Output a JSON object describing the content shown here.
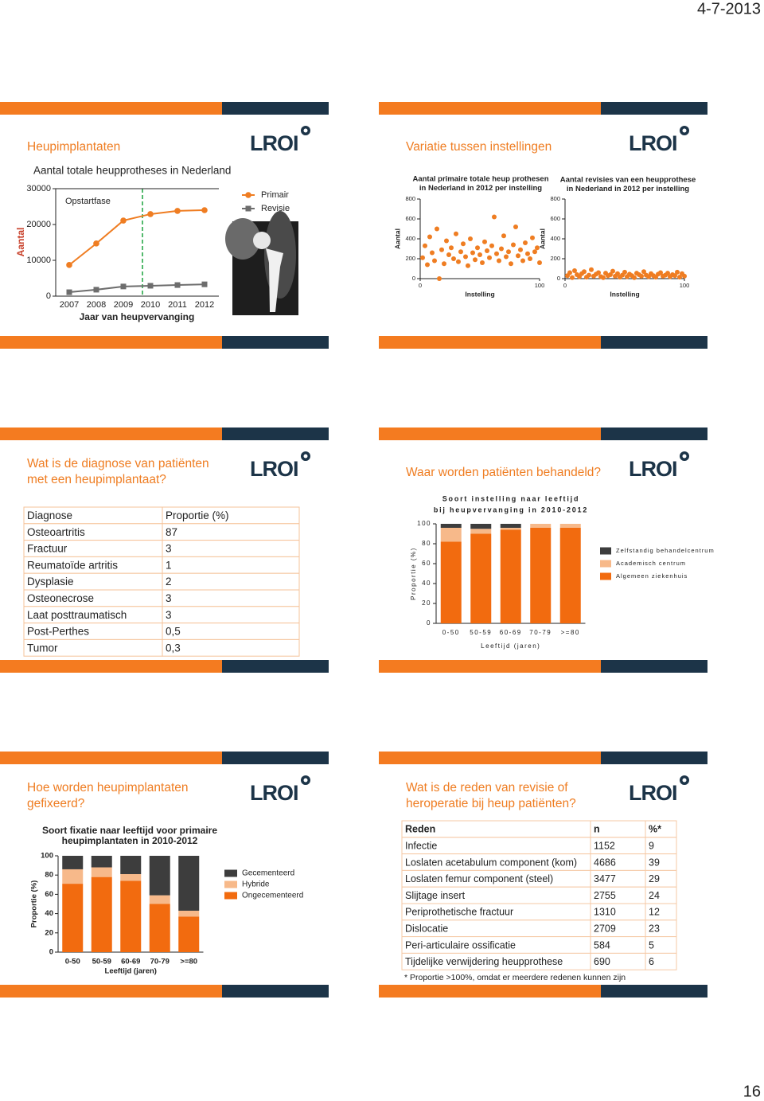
{
  "header": {
    "date": "4-7-2013"
  },
  "logo": "LROI",
  "slides": [
    {
      "title": "Heupimplantaten",
      "chart": {
        "type": "line",
        "title": "Aantal totale heupprotheses in Nederland",
        "annotation": "Opstartfase",
        "x_label": "Jaar van heupvervanging",
        "y_label": "Aantal",
        "categories": [
          "2007",
          "2008",
          "2009",
          "2010",
          "2011",
          "2012"
        ],
        "series": [
          {
            "name": "Primair",
            "color": "#ef7d22",
            "marker": "circle",
            "values": [
              8700,
              14700,
              21100,
              22900,
              23800,
              24000
            ]
          },
          {
            "name": "Revisie",
            "color": "#6d6d6d",
            "marker": "square",
            "values": [
              1100,
              1800,
              2700,
              2900,
              3100,
              3300
            ]
          }
        ],
        "ylim": [
          0,
          30000
        ],
        "yticks": [
          0,
          10000,
          20000,
          30000
        ]
      }
    },
    {
      "title": "Variatie tussen instellingen",
      "charts": [
        {
          "type": "scatter",
          "title_lines": [
            "Aantal primaire totale heup prothesen",
            "in Nederland in 2012 per instelling"
          ],
          "x_label": "Instelling",
          "y_label": "Aantal",
          "color": "#ef7d22",
          "x": [
            2,
            4,
            6,
            8,
            10,
            12,
            14,
            16,
            18,
            20,
            22,
            24,
            26,
            28,
            30,
            32,
            34,
            36,
            38,
            40,
            42,
            44,
            46,
            48,
            50,
            52,
            54,
            56,
            58,
            60,
            62,
            64,
            66,
            68,
            70,
            72,
            74,
            76,
            78,
            80,
            82,
            84,
            86,
            88,
            90,
            92,
            94,
            96,
            98,
            100
          ],
          "y": [
            210,
            330,
            140,
            420,
            260,
            180,
            500,
            0,
            290,
            150,
            380,
            240,
            310,
            200,
            450,
            170,
            270,
            350,
            220,
            130,
            400,
            260,
            190,
            310,
            240,
            160,
            370,
            280,
            210,
            330,
            620,
            250,
            180,
            300,
            430,
            220,
            270,
            150,
            340,
            520,
            230,
            290,
            180,
            360,
            250,
            200,
            410,
            270,
            310,
            160
          ],
          "xlim": [
            0,
            100
          ],
          "xticks": [
            0,
            100
          ],
          "ylim": [
            0,
            800
          ],
          "yticks": [
            0,
            200,
            400,
            600,
            800
          ]
        },
        {
          "type": "scatter",
          "title_lines": [
            "Aantal revisies van een heupprothese",
            "in Nederland in 2012 per instelling"
          ],
          "x_label": "Instelling",
          "y_label": "Aantal",
          "color": "#ef7d22",
          "x": [
            2,
            4,
            6,
            8,
            10,
            12,
            14,
            16,
            18,
            20,
            22,
            24,
            26,
            28,
            30,
            32,
            34,
            36,
            38,
            40,
            42,
            44,
            46,
            48,
            50,
            52,
            54,
            56,
            58,
            60,
            62,
            64,
            66,
            68,
            70,
            72,
            74,
            76,
            78,
            80,
            82,
            84,
            86,
            88,
            90,
            92,
            94,
            96,
            98,
            100
          ],
          "y": [
            30,
            60,
            10,
            80,
            40,
            20,
            50,
            70,
            15,
            35,
            90,
            25,
            45,
            60,
            20,
            10,
            55,
            30,
            40,
            75,
            25,
            50,
            15,
            35,
            65,
            20,
            45,
            30,
            10,
            55,
            40,
            25,
            70,
            35,
            20,
            50,
            30,
            15,
            45,
            60,
            25,
            35,
            55,
            20,
            40,
            30,
            65,
            15,
            50,
            25
          ],
          "xlim": [
            0,
            100
          ],
          "xticks": [
            0,
            100
          ],
          "ylim": [
            0,
            800
          ],
          "yticks": [
            0,
            200,
            400,
            600,
            800
          ]
        }
      ]
    },
    {
      "title_lines": [
        "Wat is de diagnose van patiënten",
        "met een heupimplantaat?"
      ],
      "table": {
        "columns": [
          "Diagnose",
          "Proportie (%)"
        ],
        "rows": [
          [
            "Osteoartritis",
            "87"
          ],
          [
            "Fractuur",
            "3"
          ],
          [
            "Reumatoïde artritis",
            "1"
          ],
          [
            "Dysplasie",
            "2"
          ],
          [
            "Osteonecrose",
            "3"
          ],
          [
            "Laat posttraumatisch",
            "3"
          ],
          [
            "Post-Perthes",
            "0,5"
          ],
          [
            "Tumor",
            "0,3"
          ]
        ]
      }
    },
    {
      "title": "Waar worden patiënten behandeld?",
      "chart": {
        "type": "bar",
        "stacked": true,
        "title_lines": [
          "Soort instelling naar leeftijd",
          "bij heupvervanging in 2010-2012"
        ],
        "x_label": "Leeftijd (jaren)",
        "y_label": "Proportie (%)",
        "categories": [
          "0-50",
          "50-59",
          "60-69",
          "70-79",
          ">=80"
        ],
        "series": [
          {
            "name": "Algemeen ziekenhuis",
            "color": "#f26b0f",
            "values": [
              82,
              90,
              94,
              96,
              96
            ]
          },
          {
            "name": "Academisch centrum",
            "color": "#f7b98a",
            "values": [
              14,
              5,
              2,
              4,
              4
            ]
          },
          {
            "name": "Zelfstandig behandelcentrum",
            "color": "#3d3d3d",
            "values": [
              4,
              5,
              4,
              0,
              0
            ]
          }
        ],
        "ylim": [
          0,
          100
        ],
        "yticks": [
          0,
          20,
          40,
          60,
          80,
          100
        ]
      }
    },
    {
      "title_lines": [
        "Hoe worden heupimplantaten",
        "gefixeerd?"
      ],
      "chart": {
        "type": "bar",
        "stacked": true,
        "title_lines": [
          "Soort fixatie naar leeftijd voor primaire",
          "heupimplantaten in 2010-2012"
        ],
        "x_label": "Leeftijd (jaren)",
        "y_label": "Proportie (%)",
        "categories": [
          "0-50",
          "50-59",
          "60-69",
          "70-79",
          ">=80"
        ],
        "series": [
          {
            "name": "Ongecementeerd",
            "color": "#f26b0f",
            "values": [
              71,
              78,
              74,
              50,
              37
            ]
          },
          {
            "name": "Hybride",
            "color": "#f7b98a",
            "values": [
              15,
              10,
              7,
              9,
              6
            ]
          },
          {
            "name": "Gecementeerd",
            "color": "#3d3d3d",
            "values": [
              14,
              12,
              19,
              41,
              57
            ]
          }
        ],
        "ylim": [
          0,
          100
        ],
        "yticks": [
          0,
          20,
          40,
          60,
          80,
          100
        ]
      }
    },
    {
      "title_lines": [
        "Wat is de reden van revisie of",
        "heroperatie bij heup patiënten?"
      ],
      "table": {
        "columns": [
          "Reden",
          "n",
          "%*"
        ],
        "rows": [
          [
            "Infectie",
            "1152",
            "9"
          ],
          [
            "Loslaten acetabulum component (kom)",
            "4686",
            "39"
          ],
          [
            "Loslaten femur component (steel)",
            "3477",
            "29"
          ],
          [
            "Slijtage insert",
            "2755",
            "24"
          ],
          [
            "Periprothetische fractuur",
            "1310",
            "12"
          ],
          [
            "Dislocatie",
            "2709",
            "23"
          ],
          [
            "Peri-articulaire ossificatie",
            "584",
            "5"
          ],
          [
            "Tijdelijke verwijdering heupprothese",
            "690",
            "6"
          ]
        ],
        "footnote": "* Proportie >100%, omdat er meerdere redenen kunnen zijn"
      }
    }
  ],
  "footer": {
    "page_number": "16"
  }
}
